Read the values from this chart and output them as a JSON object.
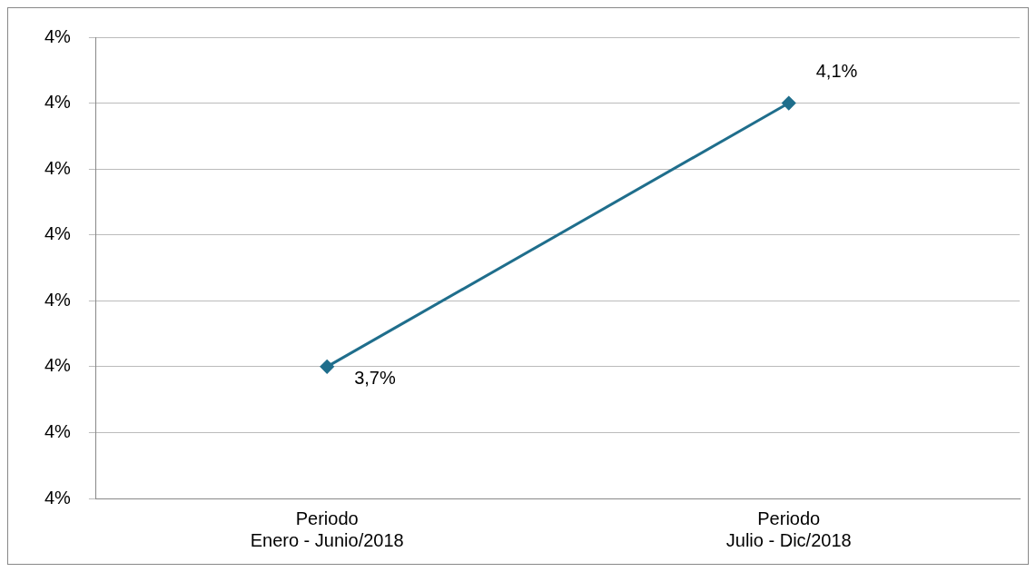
{
  "chart_data": {
    "type": "line",
    "categories": [
      "Periodo\nEnero - Junio/2018",
      "Periodo\nJulio - Dic/2018"
    ],
    "series": [
      {
        "color": "#1f6e8c",
        "values": [
          3.7,
          4.1
        ],
        "value_labels": [
          "3,7%",
          "4,1%"
        ]
      }
    ],
    "ylim": [
      3.5,
      4.2
    ],
    "yticks": [
      {
        "value": 3.5,
        "label": "4%"
      },
      {
        "value": 3.6,
        "label": "4%"
      },
      {
        "value": 3.7,
        "label": "4%"
      },
      {
        "value": 3.8,
        "label": "4%"
      },
      {
        "value": 3.9,
        "label": "4%"
      },
      {
        "value": 4.0,
        "label": "4%"
      },
      {
        "value": 4.1,
        "label": "4%"
      },
      {
        "value": 4.2,
        "label": "4%"
      }
    ],
    "grid": "y",
    "marker": "diamond",
    "line_style": "solid",
    "legend": false
  }
}
